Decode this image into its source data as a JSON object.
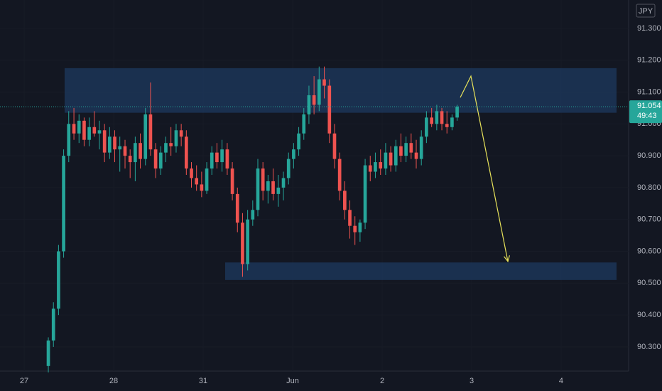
{
  "chart_data": {
    "type": "candlestick",
    "currency": "JPY",
    "last_price": 91.054,
    "countdown": "49:43",
    "x": [
      0.27,
      0.327,
      0.384,
      0.441,
      0.498,
      0.556,
      0.613,
      0.67,
      0.727,
      0.784,
      0.841,
      0.898,
      0.955,
      1.012,
      1.069,
      1.127,
      1.184,
      1.241,
      1.298,
      1.355,
      1.412,
      1.469,
      1.526,
      1.583,
      1.64,
      1.698,
      1.755,
      1.812,
      1.869,
      1.926,
      1.983,
      2.04,
      2.097,
      2.154,
      2.211,
      2.269,
      2.326,
      2.383,
      2.44,
      2.497,
      2.554,
      2.611,
      2.668,
      2.725,
      2.782,
      2.84,
      2.897,
      2.954,
      3.011,
      3.068,
      3.125,
      3.182,
      3.239,
      3.296,
      3.353,
      3.411,
      3.468,
      3.525,
      3.582,
      3.639,
      3.696,
      3.753,
      3.81,
      3.867,
      3.924,
      3.982,
      4.039,
      4.096,
      4.153,
      4.21,
      4.267,
      4.324,
      4.381,
      4.438,
      4.495,
      4.553,
      4.61,
      4.667,
      4.724,
      4.781,
      4.838
    ],
    "open": [
      90.24,
      90.32,
      90.42,
      90.6,
      90.9,
      91.0,
      90.97,
      91.01,
      90.95,
      90.99,
      90.97,
      90.98,
      90.91,
      90.96,
      90.92,
      90.93,
      90.9,
      90.88,
      90.94,
      90.89,
      91.03,
      90.92,
      90.86,
      90.91,
      90.94,
      90.93,
      90.98,
      90.96,
      90.86,
      90.83,
      90.81,
      90.79,
      90.86,
      90.91,
      90.88,
      90.92,
      90.86,
      90.78,
      90.69,
      90.56,
      90.7,
      90.73,
      90.86,
      90.79,
      90.82,
      90.78,
      90.8,
      90.83,
      90.89,
      90.92,
      90.97,
      91.03,
      91.09,
      91.06,
      91.14,
      91.12,
      90.97,
      90.89,
      90.79,
      90.73,
      90.68,
      90.66,
      90.69,
      90.87,
      90.85,
      90.88,
      90.86,
      90.91,
      90.87,
      90.93,
      90.9,
      90.94,
      90.91,
      90.89,
      90.96,
      91.02,
      91.0,
      91.04,
      91.0,
      90.99,
      91.02
    ],
    "high": [
      90.33,
      90.44,
      90.62,
      90.92,
      91.04,
      91.05,
      91.03,
      91.02,
      91.02,
      91.04,
      91.01,
      91.0,
      90.99,
      90.98,
      90.96,
      90.95,
      90.92,
      90.96,
      90.97,
      91.05,
      91.13,
      90.94,
      90.93,
      90.96,
      90.99,
      91.0,
      91.0,
      90.98,
      90.88,
      90.87,
      90.85,
      90.88,
      90.93,
      90.94,
      90.95,
      90.94,
      90.88,
      90.8,
      90.72,
      90.73,
      90.76,
      90.89,
      90.88,
      90.84,
      90.86,
      90.84,
      90.85,
      90.91,
      90.94,
      90.99,
      91.05,
      91.12,
      91.15,
      91.18,
      91.18,
      91.14,
      91.0,
      90.91,
      90.82,
      90.76,
      90.71,
      90.7,
      90.89,
      90.9,
      90.91,
      90.92,
      90.94,
      90.93,
      90.95,
      90.97,
      90.96,
      90.97,
      90.95,
      90.98,
      91.04,
      91.05,
      91.06,
      91.05,
      91.04,
      91.03,
      91.06
    ],
    "low": [
      90.22,
      90.3,
      90.4,
      90.58,
      90.88,
      90.95,
      90.94,
      90.93,
      90.93,
      90.96,
      90.92,
      90.88,
      90.89,
      90.88,
      90.85,
      90.86,
      90.83,
      90.82,
      90.86,
      90.87,
      90.9,
      90.83,
      90.84,
      90.88,
      90.9,
      90.91,
      90.93,
      90.84,
      90.8,
      90.79,
      90.77,
      90.78,
      90.84,
      90.86,
      90.85,
      90.84,
      90.76,
      90.66,
      90.52,
      90.54,
      90.68,
      90.71,
      90.76,
      90.75,
      90.76,
      90.74,
      90.76,
      90.81,
      90.86,
      90.9,
      90.95,
      91.0,
      91.03,
      91.04,
      91.08,
      90.94,
      90.86,
      90.76,
      90.7,
      90.64,
      90.62,
      90.63,
      90.67,
      90.82,
      90.83,
      90.84,
      90.84,
      90.85,
      90.85,
      90.88,
      90.88,
      90.89,
      90.86,
      90.87,
      90.94,
      90.99,
      90.98,
      90.98,
      90.97,
      90.98,
      91.01
    ],
    "close": [
      90.32,
      90.42,
      90.6,
      90.9,
      91.0,
      90.97,
      91.01,
      90.95,
      90.99,
      90.97,
      90.98,
      90.91,
      90.96,
      90.92,
      90.93,
      90.9,
      90.88,
      90.94,
      90.89,
      91.03,
      90.92,
      90.86,
      90.91,
      90.94,
      90.93,
      90.98,
      90.96,
      90.86,
      90.83,
      90.81,
      90.79,
      90.86,
      90.91,
      90.88,
      90.92,
      90.86,
      90.78,
      90.69,
      90.56,
      90.7,
      90.73,
      90.86,
      90.79,
      90.82,
      90.78,
      90.8,
      90.83,
      90.89,
      90.92,
      90.97,
      91.03,
      91.09,
      91.06,
      91.14,
      91.12,
      90.97,
      90.89,
      90.79,
      90.73,
      90.68,
      90.66,
      90.69,
      90.87,
      90.85,
      90.88,
      90.86,
      90.91,
      90.87,
      90.93,
      90.9,
      90.94,
      90.91,
      90.89,
      90.96,
      91.02,
      91.0,
      91.04,
      91.0,
      90.99,
      91.02,
      91.054
    ],
    "up_color": "#26a69a",
    "down_color": "#ef5350",
    "zones": [
      {
        "x": [
          0.452,
          6.619
        ],
        "y": [
          91.035,
          91.175
        ],
        "color": "#1e3a5f"
      },
      {
        "x": [
          2.246,
          6.619
        ],
        "y": [
          90.51,
          90.565
        ],
        "color": "#1e3a5f"
      }
    ],
    "arrow": {
      "x": [
        4.873,
        4.992,
        5.405
      ],
      "y": [
        91.083,
        91.15,
        90.568
      ],
      "color": "#e8e35a"
    },
    "xlim": [
      -0.27,
      6.754
    ],
    "xticks": [
      {
        "value": 0,
        "label": "27"
      },
      {
        "value": 1,
        "label": "28"
      },
      {
        "value": 2,
        "label": "31"
      },
      {
        "value": 3,
        "label": "Jun"
      },
      {
        "value": 4,
        "label": "2"
      },
      {
        "value": 5,
        "label": "3"
      },
      {
        "value": 6,
        "label": "4"
      }
    ],
    "ylim": [
      90.224,
      91.389
    ],
    "yticks": [
      {
        "value": 90.3,
        "label": "90.300"
      },
      {
        "value": 90.4,
        "label": "90.400"
      },
      {
        "value": 90.5,
        "label": "90.500"
      },
      {
        "value": 90.6,
        "label": "90.600"
      },
      {
        "value": 90.7,
        "label": "90.700"
      },
      {
        "value": 90.8,
        "label": "90.800"
      },
      {
        "value": 90.9,
        "label": "90.900"
      },
      {
        "value": 91.0,
        "label": "91.000"
      },
      {
        "value": 91.1,
        "label": "91.100"
      },
      {
        "value": 91.2,
        "label": "91.200"
      },
      {
        "value": 91.3,
        "label": "91.300"
      }
    ]
  }
}
